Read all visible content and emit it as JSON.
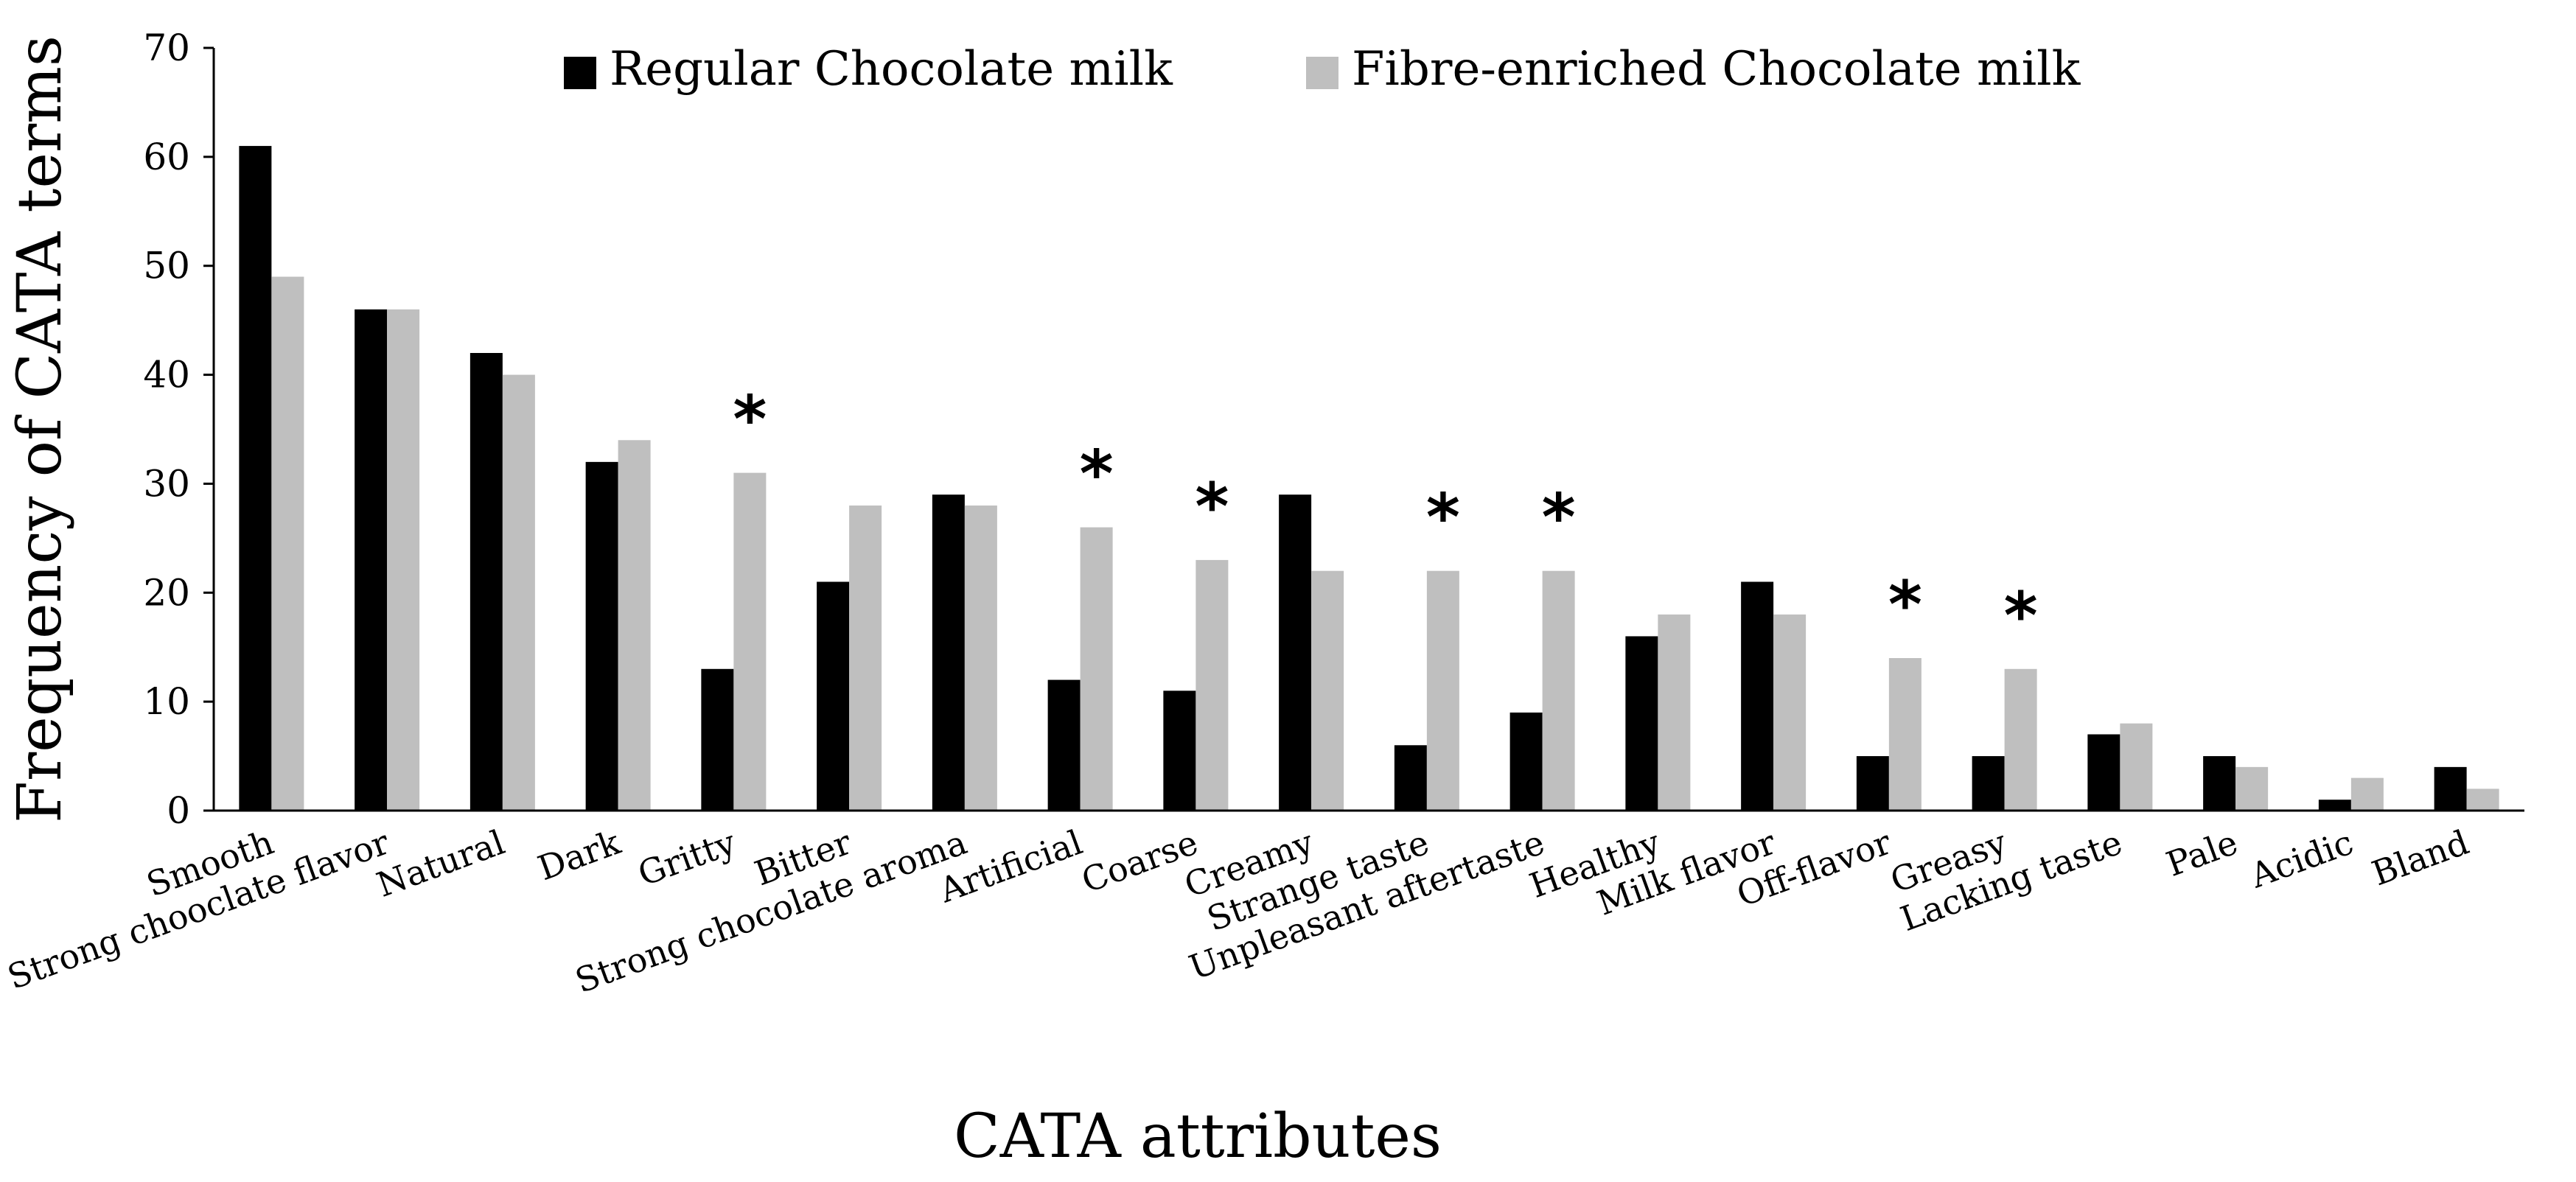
{
  "chart_data": {
    "type": "bar",
    "title": "",
    "xlabel": "CATA attributes",
    "ylabel": "Frequency of CATA terms",
    "ylim": [
      0,
      70
    ],
    "yticks": [
      0,
      10,
      20,
      30,
      40,
      50,
      60,
      70
    ],
    "grid": false,
    "legend_position": "top-center",
    "categories": [
      "Smooth",
      "Strong chooclate flavor",
      "Natural",
      "Dark",
      "Gritty",
      "Bitter",
      "Strong chocolate aroma",
      "Artificial",
      "Coarse",
      "Creamy",
      "Strange taste",
      "Unpleasant aftertaste",
      "Healthy",
      "Milk flavor",
      "Off-flavor",
      "Greasy",
      "Lacking taste",
      "Pale",
      "Acidic",
      "Bland"
    ],
    "series": [
      {
        "name": "Regular Chocolate milk",
        "color": "#000000",
        "values": [
          61,
          46,
          42,
          32,
          13,
          21,
          29,
          12,
          11,
          29,
          6,
          9,
          16,
          21,
          5,
          5,
          7,
          5,
          1,
          4
        ]
      },
      {
        "name": "Fibre-enriched Chocolate milk",
        "color": "#bfbfbf",
        "values": [
          49,
          46,
          40,
          34,
          31,
          28,
          28,
          26,
          23,
          22,
          22,
          22,
          18,
          18,
          14,
          13,
          8,
          4,
          3,
          2
        ]
      }
    ],
    "significance_marker": "*",
    "significant_categories": [
      "Gritty",
      "Artificial",
      "Coarse",
      "Strange taste",
      "Unpleasant aftertaste",
      "Off-flavor",
      "Greasy"
    ]
  }
}
